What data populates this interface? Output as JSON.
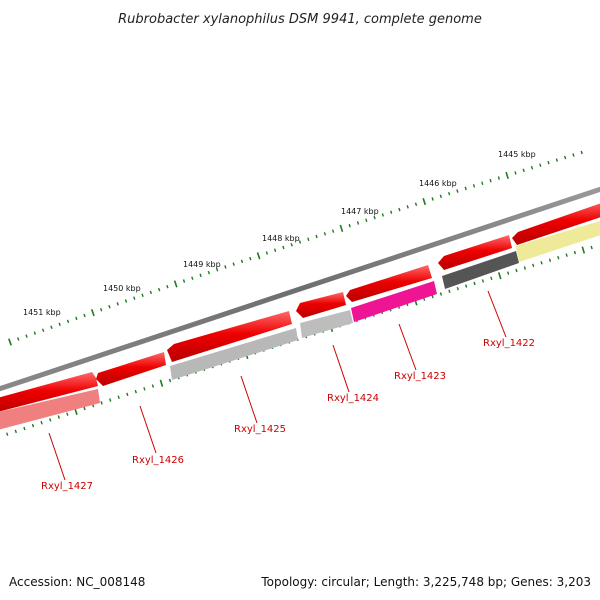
{
  "title": "Rubrobacter xylanophilus DSM 9941, complete genome",
  "accession": "Accession: NC_008148",
  "summary": "Topology: circular; Length: 3,225,748 bp; Genes: 3,203",
  "colors": {
    "backbone": "#7a7a7a",
    "tick": "#1f7a1f",
    "gene_label": "#cc0000"
  },
  "scale_labels": [
    "1445 kbp",
    "1446 kbp",
    "1447 kbp",
    "1448 kbp",
    "1449 kbp",
    "1450 kbp",
    "1451 kbp"
  ],
  "gene_labels": [
    "Rxyl_1422",
    "Rxyl_1423",
    "Rxyl_1424",
    "Rxyl_1425",
    "Rxyl_1426",
    "Rxyl_1427"
  ],
  "features": [
    {
      "track": "outer",
      "color": "#e60000",
      "name": "outer-feature-1"
    },
    {
      "track": "outer",
      "color": "#e60000",
      "name": "outer-feature-2"
    },
    {
      "track": "outer",
      "color": "#e60000",
      "name": "outer-feature-3"
    },
    {
      "track": "outer",
      "color": "#e60000",
      "name": "outer-feature-4"
    },
    {
      "track": "outer",
      "color": "#e60000",
      "name": "outer-feature-5"
    },
    {
      "track": "outer",
      "color": "#e60000",
      "name": "outer-feature-6"
    },
    {
      "track": "outer",
      "color": "#e60000",
      "name": "outer-feature-7"
    },
    {
      "track": "outer",
      "color": "#e60000",
      "name": "outer-feature-8"
    },
    {
      "track": "inner",
      "color": "#f07f7f",
      "name": "inner-feature-rxyl-1427"
    },
    {
      "track": "inner",
      "color": "#b8b8b8",
      "name": "inner-feature-rxyl-1425"
    },
    {
      "track": "inner",
      "color": "#b8b8b8",
      "name": "inner-feature-rxyl-1424"
    },
    {
      "track": "inner",
      "color": "#ee1493",
      "name": "inner-feature-rxyl-1423"
    },
    {
      "track": "inner",
      "color": "#555555",
      "name": "inner-feature-rxyl-1422"
    },
    {
      "track": "inner",
      "color": "#eeea99",
      "name": "inner-feature-rxyl-1421"
    }
  ]
}
